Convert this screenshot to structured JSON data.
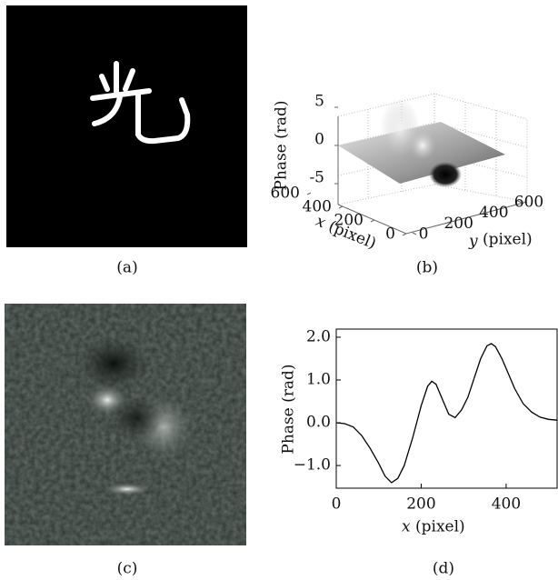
{
  "panels": [
    {
      "caption": "(a)"
    },
    {
      "caption": "(b)"
    },
    {
      "caption": "(c)"
    },
    {
      "caption": "(d)"
    }
  ],
  "panel_b": {
    "zlabel": "Phase (rad)",
    "xvar": "x",
    "xunit": "(pixel)",
    "yvar": "y",
    "yunit": "(pixel)",
    "zlim": [
      -5,
      5
    ],
    "zticks": [
      5,
      0,
      -5
    ],
    "xlim": [
      0,
      600
    ],
    "xticks": [
      600,
      400,
      200,
      0
    ],
    "ylim": [
      0,
      600
    ],
    "yticks": [
      0,
      200,
      400,
      600
    ]
  },
  "chart_data": {
    "type": "line",
    "ylabel": "Phase (rad)",
    "xvar": "x",
    "xunit": "(pixel)",
    "color": "#000000",
    "x": [
      0,
      20,
      40,
      60,
      80,
      100,
      115,
      130,
      145,
      160,
      180,
      200,
      215,
      225,
      235,
      250,
      265,
      280,
      295,
      310,
      325,
      340,
      355,
      365,
      375,
      390,
      405,
      420,
      440,
      460,
      480,
      500,
      520
    ],
    "values": [
      0.0,
      -0.02,
      -0.1,
      -0.3,
      -0.6,
      -0.95,
      -1.25,
      -1.4,
      -1.3,
      -1.0,
      -0.35,
      0.4,
      0.85,
      0.97,
      0.9,
      0.55,
      0.2,
      0.12,
      0.3,
      0.6,
      1.05,
      1.5,
      1.8,
      1.85,
      1.78,
      1.5,
      1.15,
      0.8,
      0.45,
      0.25,
      0.13,
      0.08,
      0.06
    ],
    "xlim": [
      0,
      520
    ],
    "ylim": [
      -1.53,
      2.19
    ],
    "xticks": [
      0,
      200,
      400
    ],
    "yticks": [
      {
        "value": 2.0,
        "label": "2.0"
      },
      {
        "value": 1.0,
        "label": "1.0"
      },
      {
        "value": 0.0,
        "label": "0.0"
      },
      {
        "value": -1.0,
        "label": "−1.0"
      }
    ]
  }
}
